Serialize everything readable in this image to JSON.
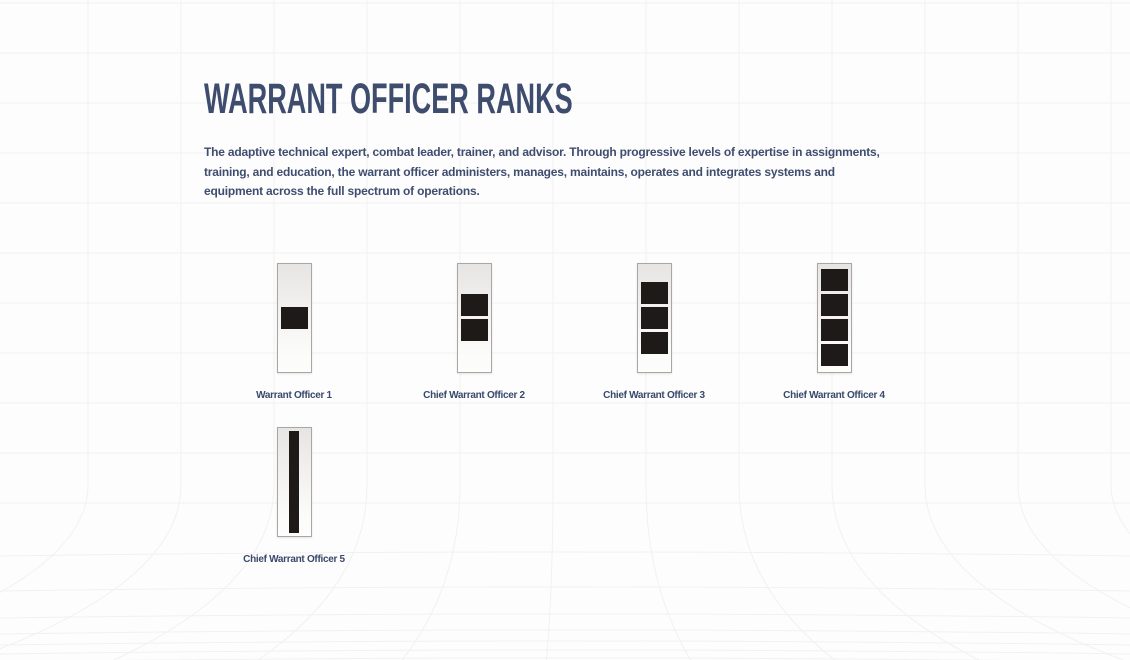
{
  "page": {
    "title": "WARRANT OFFICER RANKS",
    "description_lines": [
      "The adaptive technical expert, combat leader, trainer, and advisor. Through progressive levels of expertise in assignments,",
      "training, and education, the warrant officer administers, manages, maintains, operates and integrates systems and",
      "equipment across the full spectrum of operations."
    ]
  },
  "ranks": [
    {
      "label": "Warrant Officer 1",
      "insignia": "silver-bar",
      "device": "squares",
      "square_count": 1
    },
    {
      "label": "Chief Warrant Officer 2",
      "insignia": "silver-bar",
      "device": "squares",
      "square_count": 2
    },
    {
      "label": "Chief Warrant Officer 3",
      "insignia": "silver-bar",
      "device": "squares",
      "square_count": 3
    },
    {
      "label": "Chief Warrant Officer 4",
      "insignia": "silver-bar",
      "device": "squares",
      "square_count": 4
    },
    {
      "label": "Chief Warrant Officer 5",
      "insignia": "silver-bar",
      "device": "stripe",
      "square_count": 0
    }
  ],
  "colors": {
    "background": "#fdfdfd",
    "grid_line": "#f1f1f2",
    "heading_text": "#3e4c6e",
    "body_text": "#3f4d6f",
    "label_text": "#39486b",
    "insignia_device_black": "#1e1a17",
    "insignia_bar_border": "#a9a6a3",
    "insignia_bar_top": "#e6e5e3",
    "insignia_bar_bottom": "#fdfdfc"
  }
}
